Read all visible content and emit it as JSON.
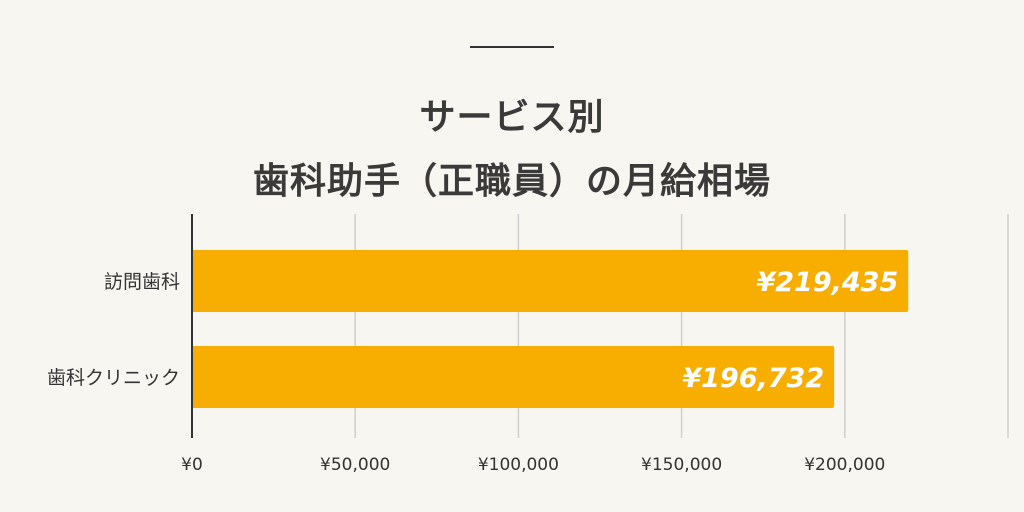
{
  "title_line1": "サービス別",
  "title_line2": "歯科助手（正職員）の月給相場",
  "colors": {
    "bar": "#f7ae00",
    "grid": "#cfcfcf",
    "axis": "#333333",
    "label_text": "#ffffff"
  },
  "chart_data": {
    "type": "bar",
    "orientation": "horizontal",
    "categories": [
      "訪問歯科",
      "歯科クリニック"
    ],
    "values": [
      219435,
      196732
    ],
    "value_labels": [
      "¥219,435",
      "¥196,732"
    ],
    "xlim": [
      0,
      250000
    ],
    "x_ticks": [
      0,
      50000,
      100000,
      150000,
      200000
    ],
    "x_tick_labels": [
      "¥0",
      "¥50,000",
      "¥100,000",
      "¥150,000",
      "¥200,000"
    ],
    "grid": true,
    "legend": "none"
  }
}
